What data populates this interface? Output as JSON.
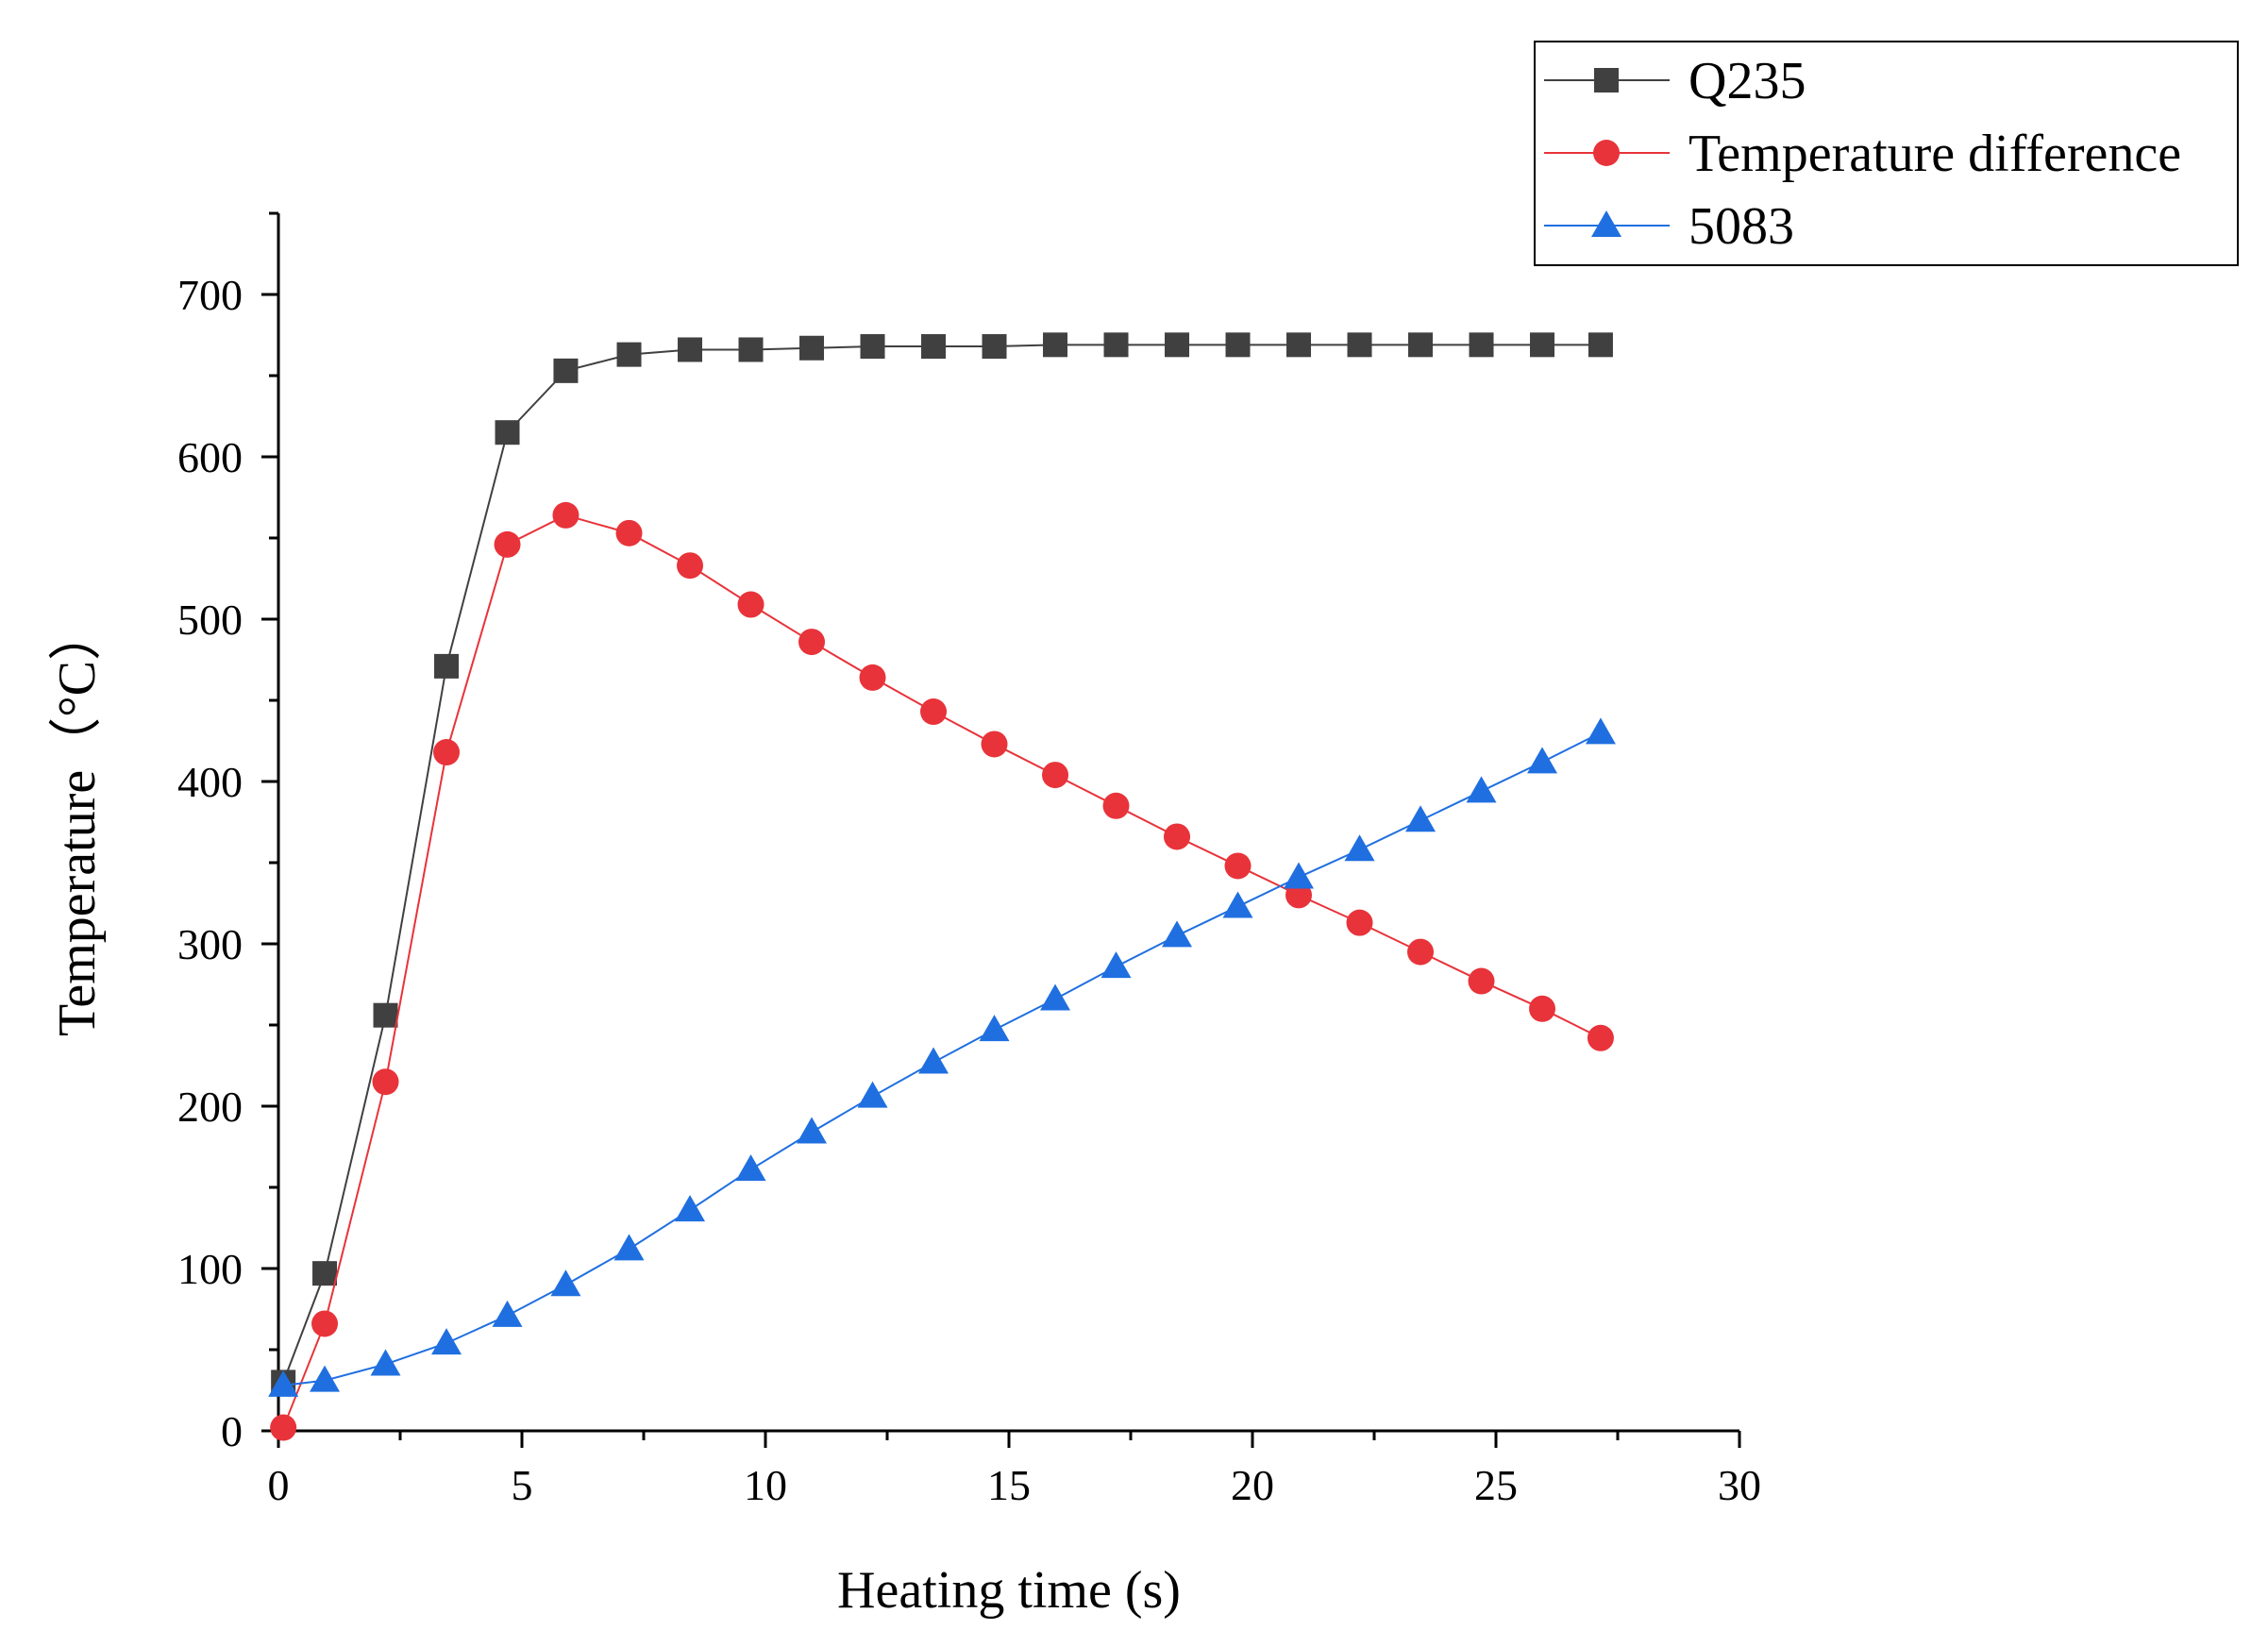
{
  "chart_data": {
    "type": "line",
    "title": "",
    "xlabel": "Heating time (s)",
    "ylabel": "Temperature（°C）",
    "xlim": [
      0,
      30
    ],
    "ylim": [
      0,
      750
    ],
    "x_ticks": [
      0,
      5,
      10,
      15,
      20,
      25,
      30
    ],
    "y_ticks": [
      0,
      100,
      200,
      300,
      400,
      500,
      600,
      700
    ],
    "x_tick_labels": [
      "0",
      "5",
      "10",
      "15",
      "20",
      "25",
      "30"
    ],
    "y_tick_labels": [
      "0",
      "100",
      "200",
      "300",
      "400",
      "500",
      "600",
      "700"
    ],
    "grid": false,
    "legend_position": "top-right",
    "x": [
      0.1,
      0.95,
      2.2,
      3.45,
      4.7,
      5.9,
      7.2,
      8.45,
      9.7,
      10.95,
      12.2,
      13.45,
      14.7,
      15.95,
      17.2,
      18.45,
      19.7,
      20.95,
      22.2,
      23.45,
      24.7,
      25.95,
      27.15
    ],
    "series": [
      {
        "name": "Q235",
        "color": "#404040",
        "marker": "square",
        "values": [
          30,
          97,
          256,
          471,
          615,
          653,
          663,
          666,
          666,
          667,
          668,
          668,
          668,
          669,
          669,
          669,
          669,
          669,
          669,
          669,
          669,
          669,
          669
        ]
      },
      {
        "name": "Temperature difference",
        "color": "#e8333a",
        "marker": "circle",
        "values": [
          2,
          66,
          215,
          418,
          546,
          564,
          553,
          533,
          509,
          486,
          464,
          443,
          423,
          404,
          385,
          366,
          348,
          330,
          313,
          295,
          277,
          260,
          242
        ]
      },
      {
        "name": "5083",
        "color": "#1f6fe0",
        "marker": "triangle",
        "values": [
          28,
          31,
          41,
          54,
          71,
          90,
          112,
          136,
          161,
          184,
          206,
          227,
          247,
          266,
          286,
          305,
          323,
          341,
          358,
          376,
          394,
          412,
          430
        ]
      }
    ]
  }
}
